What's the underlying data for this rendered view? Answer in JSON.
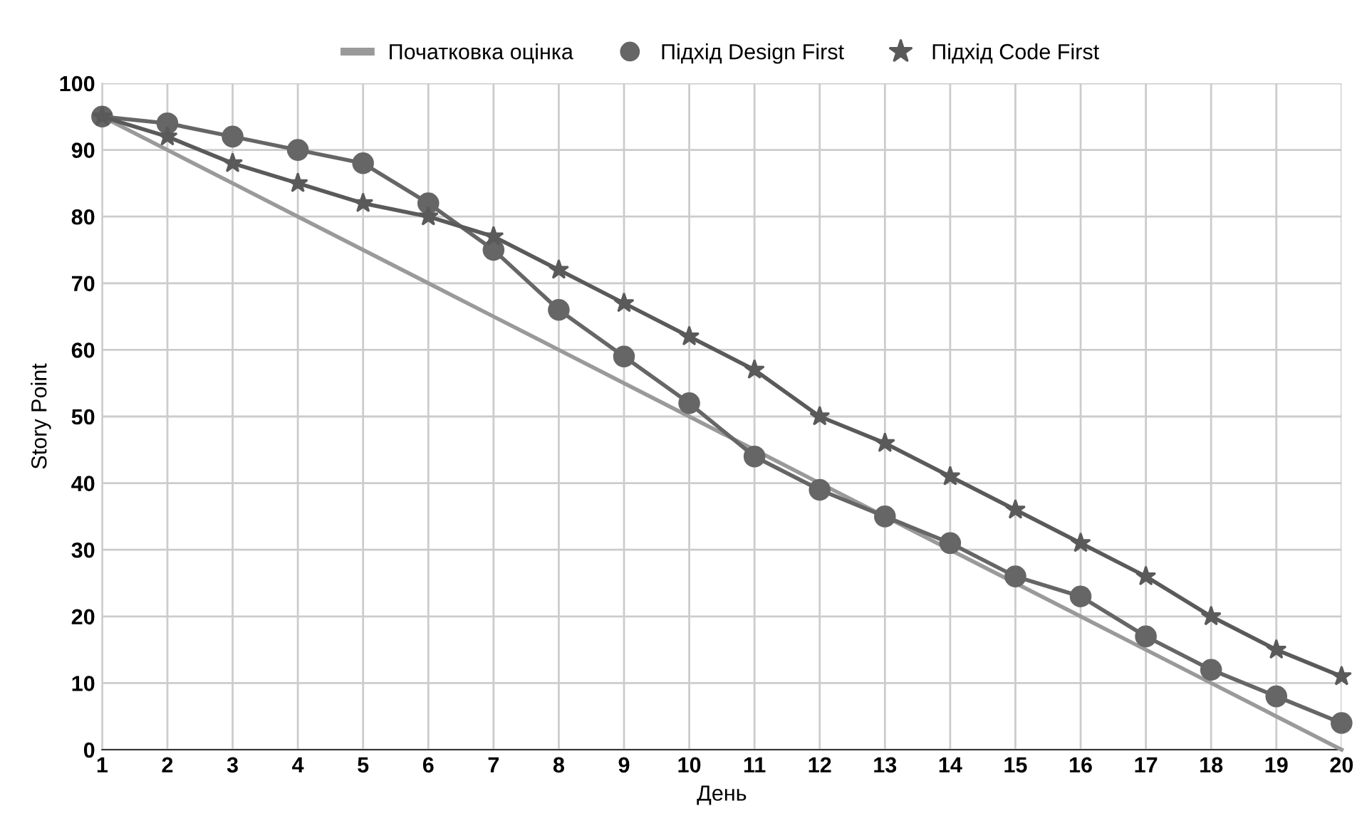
{
  "chart_data": {
    "type": "line",
    "xlabel": "День",
    "ylabel": "Story Point",
    "categories": [
      "1",
      "2",
      "3",
      "4",
      "5",
      "6",
      "7",
      "8",
      "9",
      "10",
      "11",
      "12",
      "13",
      "14",
      "15",
      "16",
      "17",
      "18",
      "19",
      "20"
    ],
    "series": [
      {
        "name": "Початковка оцінка",
        "color": "#9a9a9a",
        "marker": "none",
        "values": [
          95,
          90,
          85,
          80,
          75,
          70,
          65,
          60,
          55,
          50,
          45,
          40,
          35,
          30,
          25,
          20,
          15,
          10,
          5,
          0
        ]
      },
      {
        "name": "Підхід Design First",
        "color": "#666666",
        "marker": "circle",
        "values": [
          95,
          94,
          92,
          90,
          88,
          82,
          75,
          66,
          59,
          52,
          44,
          39,
          35,
          31,
          26,
          23,
          17,
          12,
          8,
          4
        ]
      },
      {
        "name": "Підхід Code First",
        "color": "#5a5a5a",
        "marker": "star",
        "values": [
          95,
          92,
          88,
          85,
          82,
          80,
          77,
          72,
          67,
          62,
          57,
          50,
          46,
          41,
          36,
          31,
          26,
          20,
          15,
          11
        ]
      }
    ],
    "ylim": [
      0,
      100
    ],
    "yticks": [
      0,
      10,
      20,
      30,
      40,
      50,
      60,
      70,
      80,
      90,
      100
    ],
    "grid": true,
    "legend": "top",
    "line_style": "solid"
  }
}
